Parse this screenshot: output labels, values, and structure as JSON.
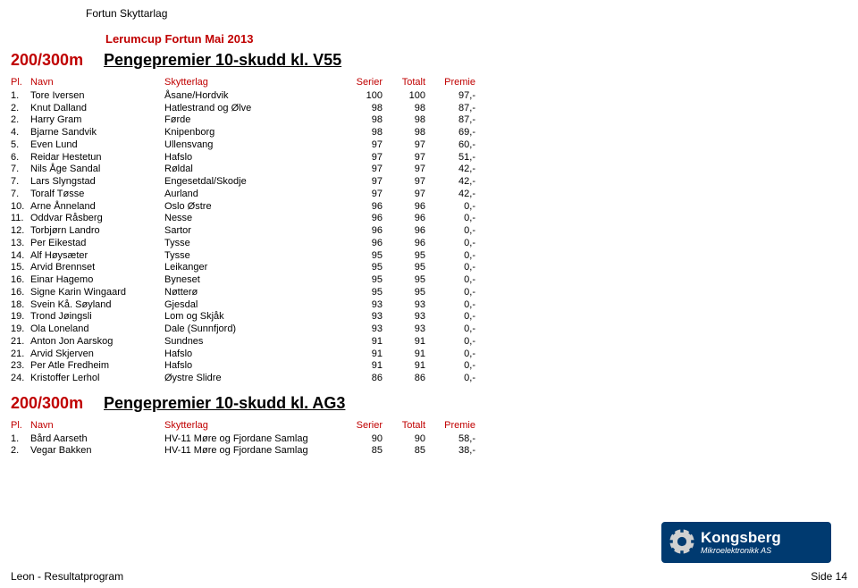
{
  "org": "Fortun Skyttarlag",
  "event": "Lerumcup Fortun Mai 2013",
  "footer_left": "Leon - Resultatprogram",
  "footer_right": "Side 14",
  "logo": {
    "brand": "Kongsberg",
    "sub": "Mikroelektronikk AS"
  },
  "headers": {
    "pl": "Pl.",
    "name": "Navn",
    "club": "Skytterlag",
    "series": "Serier",
    "total": "Totalt",
    "prize": "Premie"
  },
  "sections": [
    {
      "distance": "200/300m",
      "title": "Pengepremier 10-skudd kl. V55",
      "rows": [
        {
          "pl": "1.",
          "name": "Tore Iversen",
          "club": "Åsane/Hordvik",
          "ser": "100",
          "tot": "100",
          "prz": "97,-"
        },
        {
          "pl": "2.",
          "name": "Knut Dalland",
          "club": "Hatlestrand og Ølve",
          "ser": "98",
          "tot": "98",
          "prz": "87,-"
        },
        {
          "pl": "2.",
          "name": "Harry Gram",
          "club": "Førde",
          "ser": "98",
          "tot": "98",
          "prz": "87,-"
        },
        {
          "pl": "4.",
          "name": "Bjarne Sandvik",
          "club": "Knipenborg",
          "ser": "98",
          "tot": "98",
          "prz": "69,-"
        },
        {
          "pl": "5.",
          "name": "Even Lund",
          "club": "Ullensvang",
          "ser": "97",
          "tot": "97",
          "prz": "60,-"
        },
        {
          "pl": "6.",
          "name": "Reidar Hestetun",
          "club": "Hafslo",
          "ser": "97",
          "tot": "97",
          "prz": "51,-"
        },
        {
          "pl": "7.",
          "name": "Nils Åge Sandal",
          "club": "Røldal",
          "ser": "97",
          "tot": "97",
          "prz": "42,-"
        },
        {
          "pl": "7.",
          "name": "Lars Slyngstad",
          "club": "Engesetdal/Skodje",
          "ser": "97",
          "tot": "97",
          "prz": "42,-"
        },
        {
          "pl": "7.",
          "name": "Toralf Tøsse",
          "club": "Aurland",
          "ser": "97",
          "tot": "97",
          "prz": "42,-"
        },
        {
          "pl": "10.",
          "name": "Arne Ånneland",
          "club": "Oslo Østre",
          "ser": "96",
          "tot": "96",
          "prz": "0,-"
        },
        {
          "pl": "11.",
          "name": "Oddvar Råsberg",
          "club": "Nesse",
          "ser": "96",
          "tot": "96",
          "prz": "0,-"
        },
        {
          "pl": "12.",
          "name": "Torbjørn Landro",
          "club": "Sartor",
          "ser": "96",
          "tot": "96",
          "prz": "0,-"
        },
        {
          "pl": "13.",
          "name": "Per Eikestad",
          "club": "Tysse",
          "ser": "96",
          "tot": "96",
          "prz": "0,-"
        },
        {
          "pl": "14.",
          "name": "Alf Høysæter",
          "club": "Tysse",
          "ser": "95",
          "tot": "95",
          "prz": "0,-"
        },
        {
          "pl": "15.",
          "name": "Arvid Brennset",
          "club": "Leikanger",
          "ser": "95",
          "tot": "95",
          "prz": "0,-"
        },
        {
          "pl": "16.",
          "name": "Einar Hagemo",
          "club": "Byneset",
          "ser": "95",
          "tot": "95",
          "prz": "0,-"
        },
        {
          "pl": "16.",
          "name": "Signe Karin Wingaard",
          "club": "Nøtterø",
          "ser": "95",
          "tot": "95",
          "prz": "0,-"
        },
        {
          "pl": "18.",
          "name": "Svein Kå. Søyland",
          "club": "Gjesdal",
          "ser": "93",
          "tot": "93",
          "prz": "0,-"
        },
        {
          "pl": "19.",
          "name": "Trond Jøingsli",
          "club": "Lom og Skjåk",
          "ser": "93",
          "tot": "93",
          "prz": "0,-"
        },
        {
          "pl": "19.",
          "name": "Ola Loneland",
          "club": "Dale (Sunnfjord)",
          "ser": "93",
          "tot": "93",
          "prz": "0,-"
        },
        {
          "pl": "21.",
          "name": "Anton Jon Aarskog",
          "club": "Sundnes",
          "ser": "91",
          "tot": "91",
          "prz": "0,-"
        },
        {
          "pl": "21.",
          "name": "Arvid Skjerven",
          "club": "Hafslo",
          "ser": "91",
          "tot": "91",
          "prz": "0,-"
        },
        {
          "pl": "23.",
          "name": "Per Atle Fredheim",
          "club": "Hafslo",
          "ser": "91",
          "tot": "91",
          "prz": "0,-"
        },
        {
          "pl": "24.",
          "name": "Kristoffer Lerhol",
          "club": "Øystre Slidre",
          "ser": "86",
          "tot": "86",
          "prz": "0,-"
        }
      ]
    },
    {
      "distance": "200/300m",
      "title": "Pengepremier 10-skudd kl. AG3",
      "rows": [
        {
          "pl": "1.",
          "name": "Bård Aarseth",
          "club": "HV-11 Møre og Fjordane Samlag",
          "ser": "90",
          "tot": "90",
          "prz": "58,-"
        },
        {
          "pl": "2.",
          "name": "Vegar Bakken",
          "club": "HV-11 Møre og Fjordane Samlag",
          "ser": "85",
          "tot": "85",
          "prz": "38,-"
        }
      ]
    }
  ]
}
